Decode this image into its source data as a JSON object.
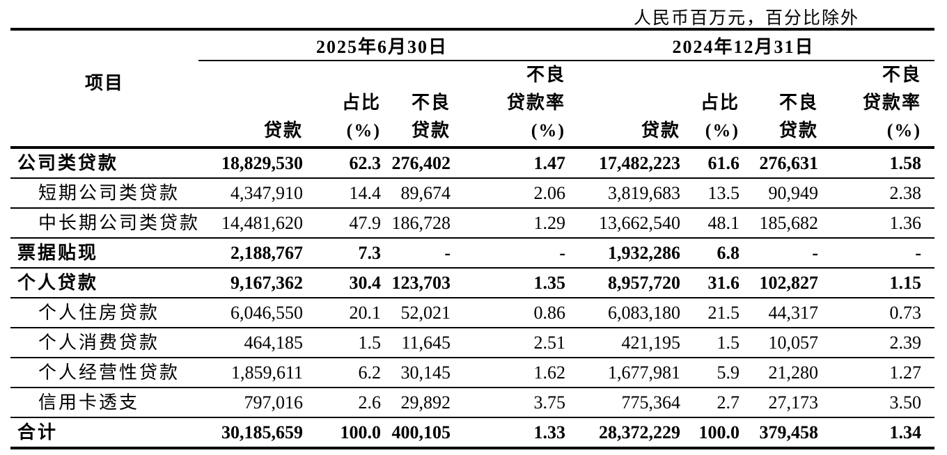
{
  "note": "人民币百万元，百分比除外",
  "table": {
    "group_headers": [
      {
        "label": "2025年6月30日"
      },
      {
        "label": "2024年12月31日"
      }
    ],
    "col_headers": {
      "item": "项目",
      "loans": "贷款",
      "share_l1": "占比",
      "share_l2": "(%)",
      "npl_l1": "不良",
      "npl_l2": "贷款",
      "ratio_l1": "不良",
      "ratio_l2": "贷款率",
      "ratio_l3": "(%)"
    },
    "rows": [
      {
        "label": "公司类贷款",
        "bold": true,
        "indent": false,
        "values": [
          "18,829,530",
          "62.3",
          "276,402",
          "1.47",
          "17,482,223",
          "61.6",
          "276,631",
          "1.58"
        ]
      },
      {
        "label": "短期公司类贷款",
        "bold": false,
        "indent": true,
        "values": [
          "4,347,910",
          "14.4",
          "89,674",
          "2.06",
          "3,819,683",
          "13.5",
          "90,949",
          "2.38"
        ]
      },
      {
        "label": "中长期公司类贷款",
        "bold": false,
        "indent": true,
        "values": [
          "14,481,620",
          "47.9",
          "186,728",
          "1.29",
          "13,662,540",
          "48.1",
          "185,682",
          "1.36"
        ]
      },
      {
        "label": "票据贴现",
        "bold": true,
        "indent": false,
        "values": [
          "2,188,767",
          "7.3",
          "-",
          "-",
          "1,932,286",
          "6.8",
          "-",
          "-"
        ]
      },
      {
        "label": "个人贷款",
        "bold": true,
        "indent": false,
        "values": [
          "9,167,362",
          "30.4",
          "123,703",
          "1.35",
          "8,957,720",
          "31.6",
          "102,827",
          "1.15"
        ]
      },
      {
        "label": "个人住房贷款",
        "bold": false,
        "indent": true,
        "values": [
          "6,046,550",
          "20.1",
          "52,021",
          "0.86",
          "6,083,180",
          "21.5",
          "44,317",
          "0.73"
        ]
      },
      {
        "label": "个人消费贷款",
        "bold": false,
        "indent": true,
        "values": [
          "464,185",
          "1.5",
          "11,645",
          "2.51",
          "421,195",
          "1.5",
          "10,057",
          "2.39"
        ]
      },
      {
        "label": "个人经营性贷款",
        "bold": false,
        "indent": true,
        "values": [
          "1,859,611",
          "6.2",
          "30,145",
          "1.62",
          "1,677,981",
          "5.9",
          "21,280",
          "1.27"
        ]
      },
      {
        "label": "信用卡透支",
        "bold": false,
        "indent": true,
        "values": [
          "797,016",
          "2.6",
          "29,892",
          "3.75",
          "775,364",
          "2.7",
          "27,173",
          "3.50"
        ]
      },
      {
        "label": "合计",
        "bold": true,
        "indent": false,
        "values": [
          "30,185,659",
          "100.0",
          "400,105",
          "1.33",
          "28,372,229",
          "100.0",
          "379,458",
          "1.34"
        ]
      }
    ]
  },
  "colors": {
    "text": "#000000",
    "background": "#ffffff",
    "rule": "#000000"
  }
}
